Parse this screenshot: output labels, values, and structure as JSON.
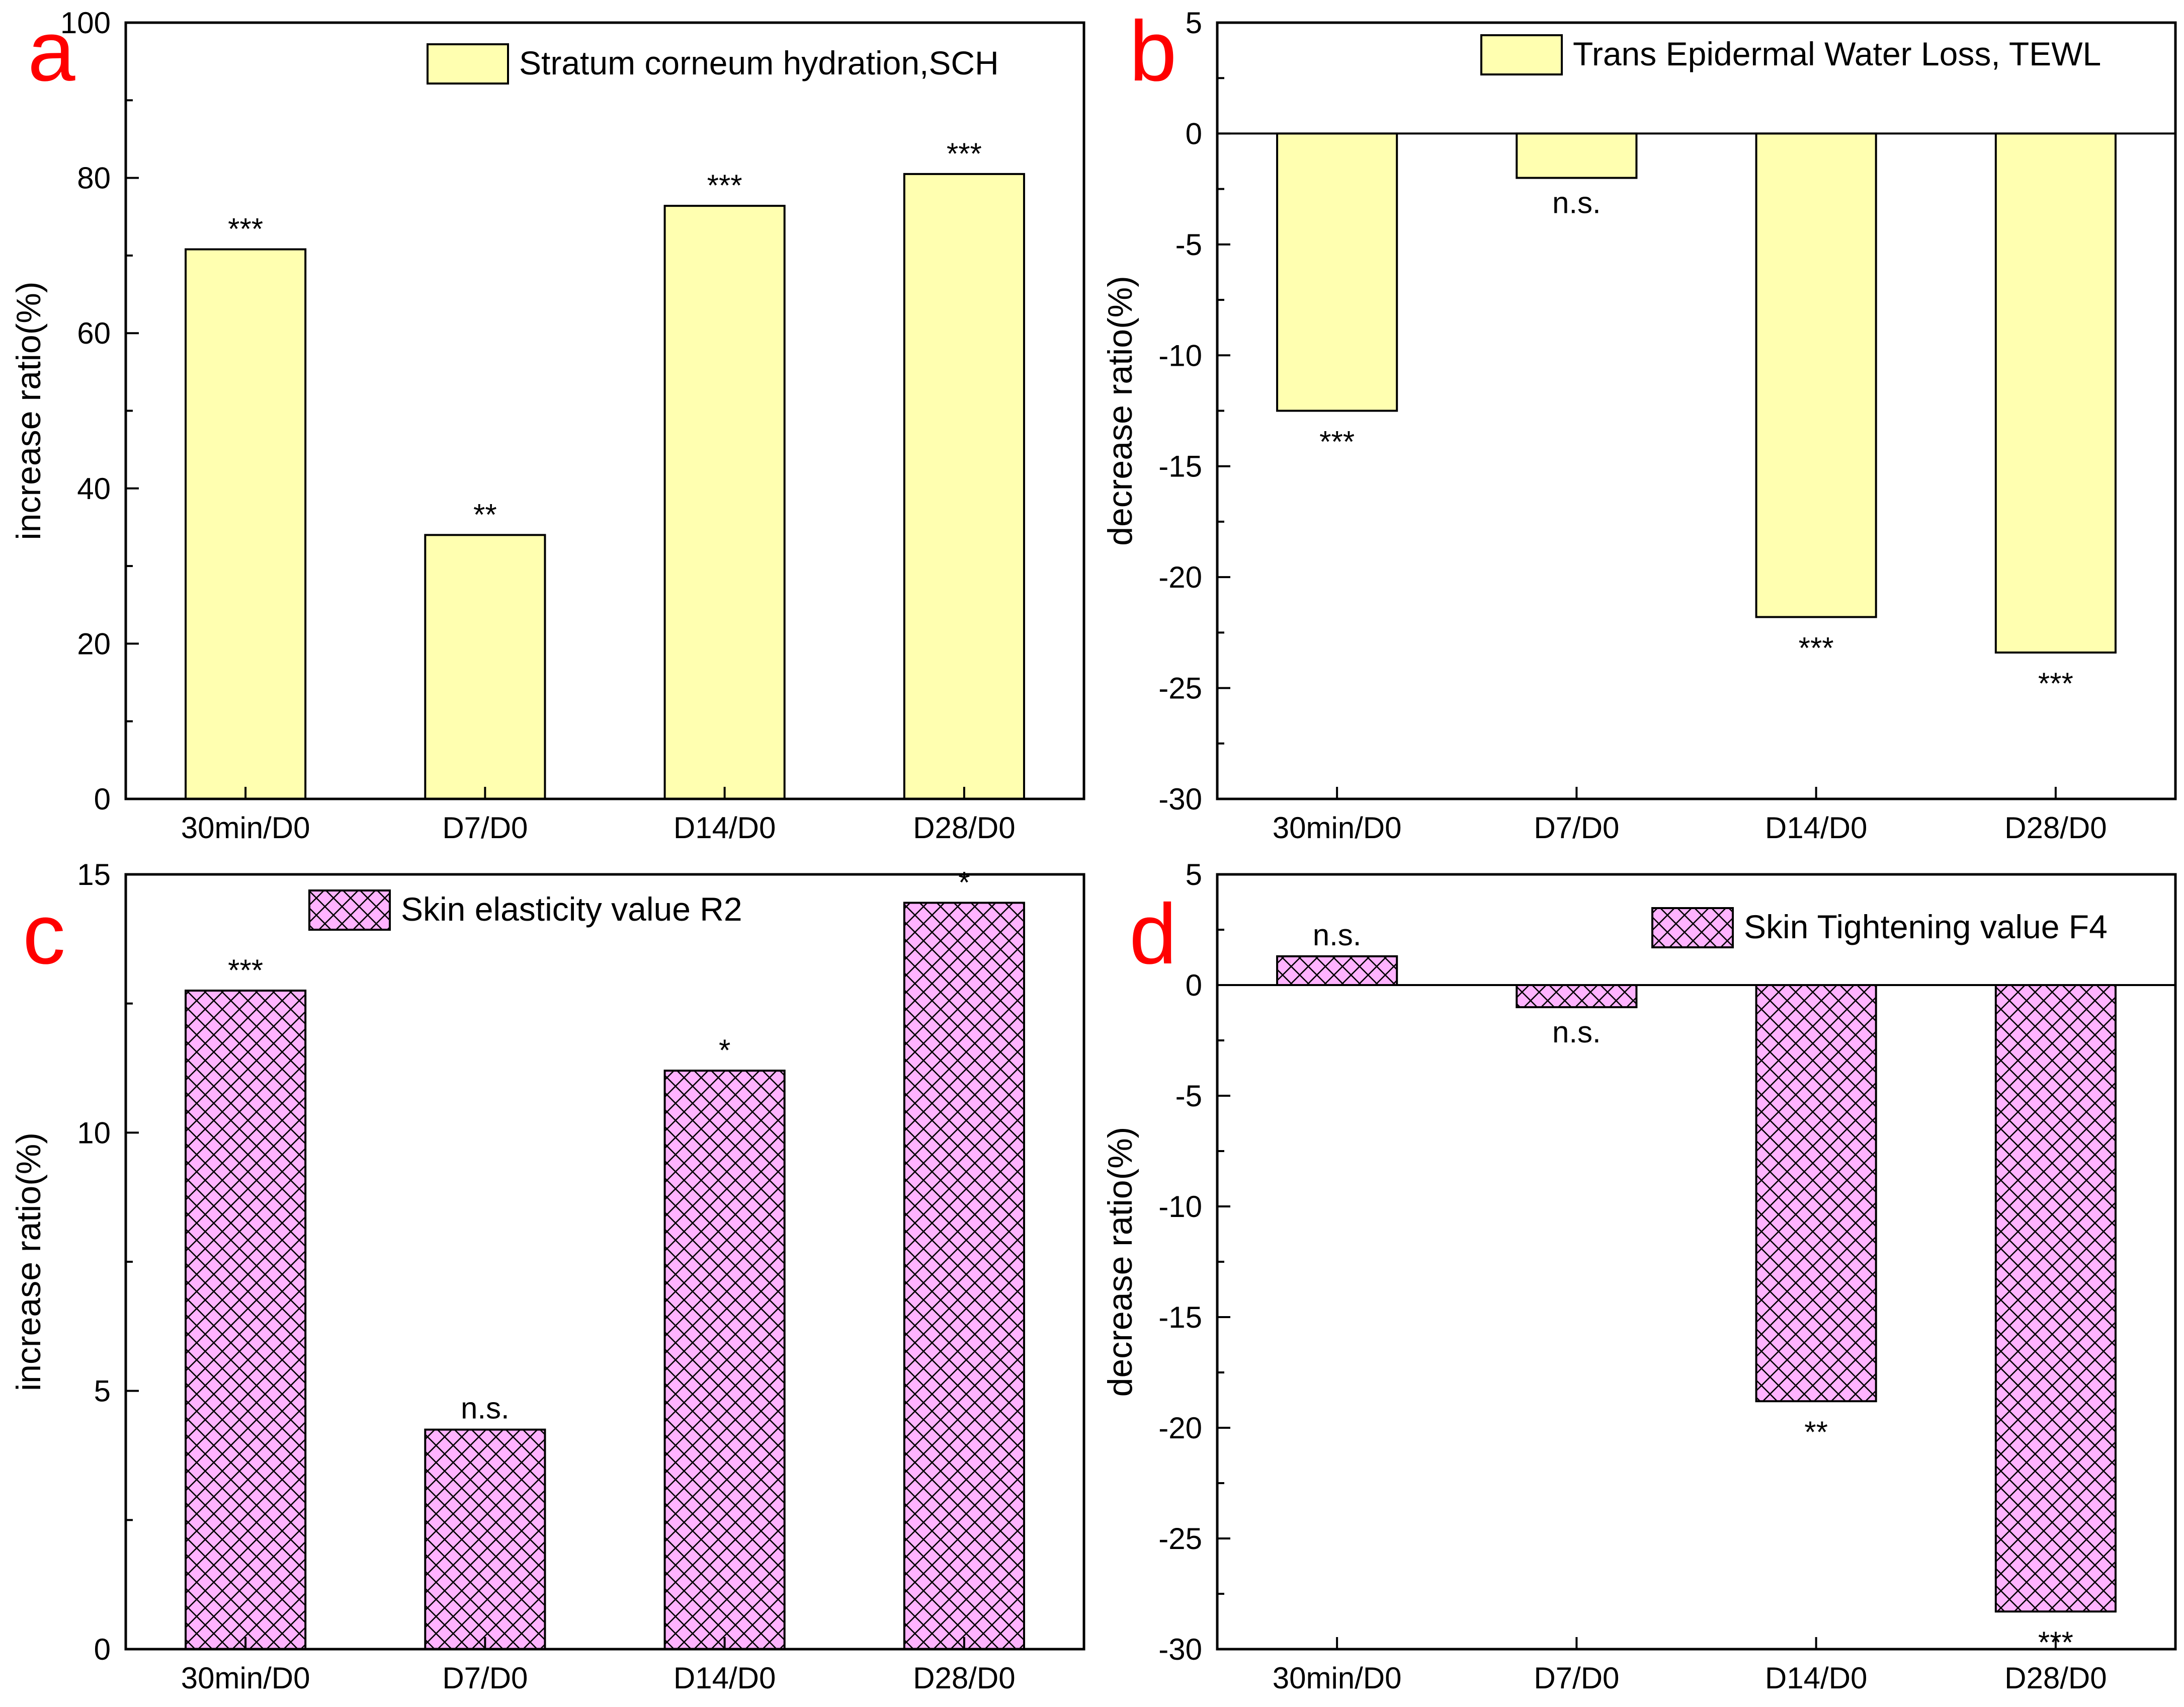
{
  "chart_data": [
    {
      "panel": "a",
      "type": "bar",
      "categories": [
        "30min/D0",
        "D7/D0",
        "D14/D0",
        "D28/D0"
      ],
      "values": [
        70.8,
        34.0,
        76.4,
        80.5
      ],
      "significance": [
        "***",
        "**",
        "***",
        "***"
      ],
      "ylabel": "increase ratio(%)",
      "ylim": [
        0,
        100
      ],
      "yticks": [
        0,
        20,
        40,
        60,
        80,
        100
      ],
      "legend": "Stratum corneum hydration,SCH",
      "legend_position": "top-right",
      "fill": "#ffffb0",
      "pattern": "solid"
    },
    {
      "panel": "b",
      "type": "bar",
      "categories": [
        "30min/D0",
        "D7/D0",
        "D14/D0",
        "D28/D0"
      ],
      "values": [
        -12.5,
        -2.0,
        -21.8,
        -23.4
      ],
      "significance": [
        "***",
        "n.s.",
        "***",
        "***"
      ],
      "ylabel": "decrease ratio(%)",
      "ylim": [
        -30,
        5
      ],
      "yticks": [
        5,
        0,
        -5,
        -10,
        -15,
        -20,
        -25,
        -30
      ],
      "legend": "Trans Epidermal Water Loss, TEWL",
      "legend_position": "top-right",
      "fill": "#ffffb0",
      "pattern": "solid"
    },
    {
      "panel": "c",
      "type": "bar",
      "categories": [
        "30min/D0",
        "D7/D0",
        "D14/D0",
        "D28/D0"
      ],
      "values": [
        12.75,
        4.25,
        11.2,
        14.45
      ],
      "significance": [
        "***",
        "n.s.",
        "*",
        "*"
      ],
      "ylabel": "increase ratio(%)",
      "ylim": [
        0,
        15
      ],
      "yticks": [
        0,
        5,
        10,
        15
      ],
      "legend": "Skin elasticity value R2",
      "legend_position": "top-center",
      "fill": "#ffb3ff",
      "pattern": "crosshatch"
    },
    {
      "panel": "d",
      "type": "bar",
      "categories": [
        "30min/D0",
        "D7/D0",
        "D14/D0",
        "D28/D0"
      ],
      "values": [
        1.3,
        -1.0,
        -18.8,
        -28.3
      ],
      "significance": [
        "n.s.",
        "n.s.",
        "**",
        "***"
      ],
      "ylabel": "decrease ratio(%)",
      "ylim": [
        -30,
        5
      ],
      "yticks": [
        5,
        0,
        -5,
        -10,
        -15,
        -20,
        -25,
        -30
      ],
      "legend": "Skin Tightening value F4",
      "legend_position": "top-right",
      "fill": "#ffb3ff",
      "pattern": "crosshatch"
    }
  ],
  "colors": {
    "yellow_fill": "#ffffb0",
    "pink_fill": "#ffb3ff",
    "panel_letter": "#ff0000"
  }
}
